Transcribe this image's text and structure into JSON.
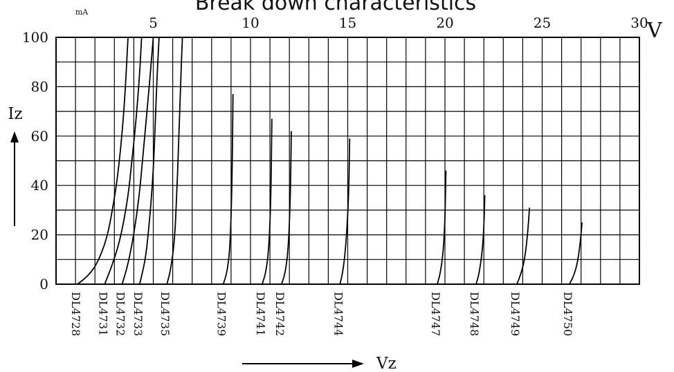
{
  "chart_data": {
    "type": "line",
    "title": "Break down characteristics",
    "xlabel": "Vz",
    "ylabel": "Iz",
    "x_unit": "V",
    "y_unit": "mA",
    "xlim": [
      0,
      30
    ],
    "ylim": [
      0,
      100
    ],
    "x_ticks": [
      "5",
      "10",
      "15",
      "20",
      "25",
      "30"
    ],
    "y_ticks": [
      "0",
      "20",
      "40",
      "60",
      "80",
      "100"
    ],
    "grid": true,
    "series": [
      {
        "name": "DL4728",
        "x": [
          1.1,
          1.6,
          2.1,
          2.6,
          2.9,
          3.2,
          3.5,
          3.7
        ],
        "y": [
          0,
          3,
          8,
          18,
          30,
          45,
          70,
          100
        ]
      },
      {
        "name": "DL4731",
        "x": [
          2.5,
          2.9,
          3.3,
          3.7,
          3.9,
          4.1,
          4.3,
          4.4
        ],
        "y": [
          0,
          8,
          18,
          35,
          50,
          65,
          85,
          100
        ]
      },
      {
        "name": "DL4732",
        "x": [
          3.4,
          3.7,
          4.0,
          4.3,
          4.5,
          4.7,
          4.9,
          5.0
        ],
        "y": [
          0,
          8,
          20,
          37,
          55,
          72,
          90,
          100
        ]
      },
      {
        "name": "DL4733",
        "x": [
          4.3,
          4.6,
          4.8,
          5.0,
          5.1,
          5.2,
          5.3
        ],
        "y": [
          0,
          10,
          25,
          45,
          65,
          85,
          100
        ]
      },
      {
        "name": "DL4735",
        "x": [
          5.7,
          5.9,
          6.1,
          6.2,
          6.3,
          6.4,
          6.5
        ],
        "y": [
          0,
          6,
          18,
          35,
          55,
          80,
          100
        ]
      },
      {
        "name": "DL4739",
        "x": [
          8.6,
          8.8,
          8.95,
          9.05,
          9.1
        ],
        "y": [
          0,
          5,
          15,
          40,
          77
        ]
      },
      {
        "name": "DL4741",
        "x": [
          10.6,
          10.8,
          10.95,
          11.05,
          11.1
        ],
        "y": [
          0,
          5,
          15,
          35,
          67
        ]
      },
      {
        "name": "DL4742",
        "x": [
          11.6,
          11.8,
          11.95,
          12.05,
          12.1
        ],
        "y": [
          0,
          5,
          15,
          35,
          62
        ]
      },
      {
        "name": "DL4744",
        "x": [
          14.6,
          14.75,
          14.9,
          15.05,
          15.1
        ],
        "y": [
          0,
          5,
          15,
          35,
          59
        ]
      },
      {
        "name": "DL4747",
        "x": [
          19.6,
          19.75,
          19.9,
          20.0,
          20.05
        ],
        "y": [
          0,
          4,
          12,
          25,
          46
        ]
      },
      {
        "name": "DL4748",
        "x": [
          21.6,
          21.75,
          21.9,
          22.0,
          22.05
        ],
        "y": [
          0,
          4,
          12,
          22,
          36
        ]
      },
      {
        "name": "DL4749",
        "x": [
          23.7,
          23.9,
          24.1,
          24.25,
          24.35
        ],
        "y": [
          0,
          4,
          10,
          20,
          31
        ]
      },
      {
        "name": "DL4750",
        "x": [
          26.4,
          26.6,
          26.8,
          26.95,
          27.05
        ],
        "y": [
          0,
          3,
          8,
          16,
          25
        ]
      }
    ]
  }
}
